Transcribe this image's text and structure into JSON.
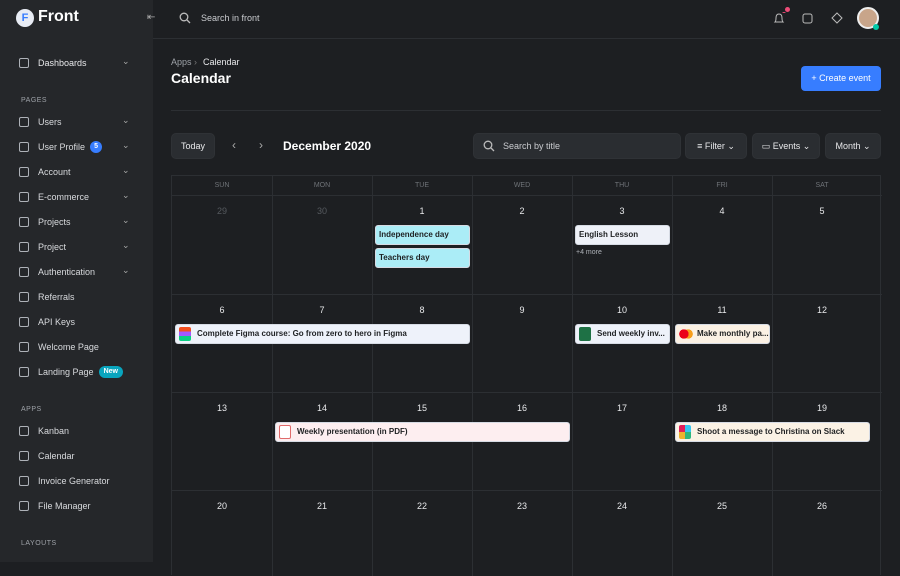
{
  "brand": "Front",
  "topbar": {
    "search_placeholder": "Search in front"
  },
  "sidebar": {
    "dashboards": "Dashboards",
    "sections": [
      {
        "heading": "PAGES",
        "items": [
          {
            "label": "Users"
          },
          {
            "label": "User Profile",
            "badge": "5"
          },
          {
            "label": "Account"
          },
          {
            "label": "E-commerce"
          },
          {
            "label": "Projects"
          },
          {
            "label": "Project"
          },
          {
            "label": "Authentication"
          },
          {
            "label": "Referrals"
          },
          {
            "label": "API Keys"
          },
          {
            "label": "Welcome Page"
          },
          {
            "label": "Landing Page",
            "badge": "New"
          }
        ]
      },
      {
        "heading": "APPS",
        "items": [
          {
            "label": "Kanban"
          },
          {
            "label": "Calendar"
          },
          {
            "label": "Invoice Generator"
          },
          {
            "label": "File Manager"
          }
        ]
      },
      {
        "heading": "LAYOUTS"
      }
    ]
  },
  "header": {
    "breadcrumb": [
      "Apps",
      "Calendar"
    ],
    "title": "Calendar",
    "create_button": "Create event"
  },
  "toolbar": {
    "today": "Today",
    "month": "December 2020",
    "search_placeholder": "Search by title",
    "filter": "Filter",
    "events": "Events",
    "view": "Month"
  },
  "calendar": {
    "weekdays": [
      "SUN",
      "MON",
      "TUE",
      "WED",
      "THU",
      "FRI",
      "SAT"
    ],
    "weeks": [
      [
        29,
        30,
        1,
        2,
        3,
        4,
        5
      ],
      [
        6,
        7,
        8,
        9,
        10,
        11,
        12
      ],
      [
        13,
        14,
        15,
        16,
        17,
        18,
        19
      ],
      [
        20,
        21,
        22,
        23,
        24,
        25,
        26
      ]
    ],
    "events": [
      {
        "title": "Independence day"
      },
      {
        "title": "Teachers day"
      },
      {
        "title": "English Lesson"
      },
      {
        "title": "Complete Figma course: Go from zero to hero in Figma"
      },
      {
        "title": "Send weekly inv..."
      },
      {
        "title": "Make monthly pa..."
      },
      {
        "title": "Weekly presentation (in PDF)"
      },
      {
        "title": "Shoot a message to Christina on Slack"
      }
    ],
    "more": "+4 more"
  }
}
